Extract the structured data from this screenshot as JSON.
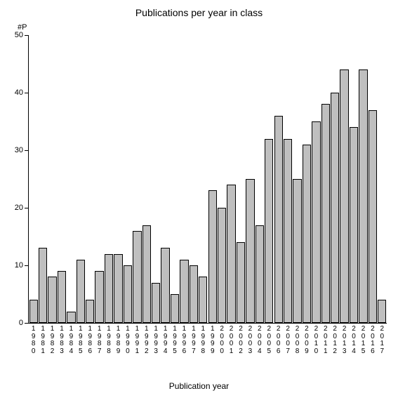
{
  "chart": {
    "type": "bar",
    "title": "Publications per year in class",
    "title_fontsize": 14,
    "y_axis_title": "#P",
    "x_axis_title": "Publication year",
    "label_fontsize": 12,
    "tick_fontsize": 11,
    "background_color": "#ffffff",
    "bar_color": "#bfbfbf",
    "bar_border_color": "#000000",
    "axis_color": "#000000",
    "bar_width": 0.92,
    "ylim": [
      0,
      50
    ],
    "ytick_step": 10,
    "yticks": [
      0,
      10,
      20,
      30,
      40,
      50
    ],
    "categories": [
      "1980",
      "1981",
      "1982",
      "1983",
      "1984",
      "1985",
      "1986",
      "1987",
      "1988",
      "1989",
      "1990",
      "1991",
      "1992",
      "1993",
      "1994",
      "1995",
      "1996",
      "1997",
      "1998",
      "1999",
      "2000",
      "2001",
      "2002",
      "2003",
      "2004",
      "2005",
      "2006",
      "2007",
      "2008",
      "2009",
      "2010",
      "2011",
      "2012",
      "2013",
      "2014",
      "2015",
      "2016",
      "2017"
    ],
    "values": [
      4,
      13,
      8,
      9,
      2,
      11,
      4,
      9,
      12,
      12,
      10,
      16,
      17,
      7,
      13,
      5,
      11,
      10,
      8,
      23,
      20,
      24,
      14,
      25,
      17,
      32,
      36,
      32,
      25,
      31,
      35,
      38,
      40,
      44,
      34,
      44,
      37,
      4
    ]
  }
}
